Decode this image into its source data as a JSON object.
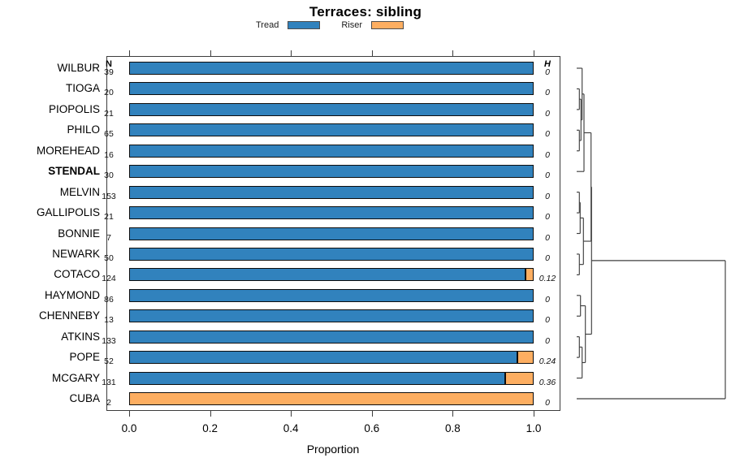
{
  "chart_data": {
    "type": "bar",
    "orientation": "horizontal",
    "stacked": true,
    "title": "Terraces: sibling",
    "xlabel": "Proportion",
    "xlim": [
      0,
      1
    ],
    "x_ticks": [
      "0.0",
      "0.2",
      "0.4",
      "0.6",
      "0.8",
      "1.0"
    ],
    "x_tick_values": [
      0.0,
      0.2,
      0.4,
      0.6,
      0.8,
      1.0
    ],
    "grid": false,
    "legend_position": "top",
    "n_header": "N",
    "h_header": "H",
    "series": [
      {
        "name": "Tread",
        "color": "#3182BD"
      },
      {
        "name": "Riser",
        "color": "#FDAE61"
      }
    ],
    "colors": {
      "tread": "#3182BD",
      "riser": "#FDAE61",
      "bar_border": "#0d0d0d",
      "box_border": "#3c3c3c",
      "dendro_line": "#3f3f3f"
    },
    "rows": [
      {
        "label": "WILBUR",
        "n": "39",
        "tread": 1.0,
        "riser": 0.0,
        "h": "0",
        "bold": false
      },
      {
        "label": "TIOGA",
        "n": "20",
        "tread": 1.0,
        "riser": 0.0,
        "h": "0",
        "bold": false
      },
      {
        "label": "PIOPOLIS",
        "n": "21",
        "tread": 1.0,
        "riser": 0.0,
        "h": "0",
        "bold": false
      },
      {
        "label": "PHILO",
        "n": "65",
        "tread": 1.0,
        "riser": 0.0,
        "h": "0",
        "bold": false
      },
      {
        "label": "MOREHEAD",
        "n": "16",
        "tread": 1.0,
        "riser": 0.0,
        "h": "0",
        "bold": false
      },
      {
        "label": "STENDAL",
        "n": "30",
        "tread": 1.0,
        "riser": 0.0,
        "h": "0",
        "bold": true
      },
      {
        "label": "MELVIN",
        "n": "153",
        "tread": 1.0,
        "riser": 0.0,
        "h": "0",
        "bold": false
      },
      {
        "label": "GALLIPOLIS",
        "n": "21",
        "tread": 1.0,
        "riser": 0.0,
        "h": "0",
        "bold": false
      },
      {
        "label": "BONNIE",
        "n": "7",
        "tread": 1.0,
        "riser": 0.0,
        "h": "0",
        "bold": false
      },
      {
        "label": "NEWARK",
        "n": "50",
        "tread": 1.0,
        "riser": 0.0,
        "h": "0",
        "bold": false
      },
      {
        "label": "COTACO",
        "n": "124",
        "tread": 0.98,
        "riser": 0.02,
        "h": "0.12",
        "bold": false
      },
      {
        "label": "HAYMOND",
        "n": "86",
        "tread": 1.0,
        "riser": 0.0,
        "h": "0",
        "bold": false
      },
      {
        "label": "CHENNEBY",
        "n": "13",
        "tread": 1.0,
        "riser": 0.0,
        "h": "0",
        "bold": false
      },
      {
        "label": "ATKINS",
        "n": "133",
        "tread": 1.0,
        "riser": 0.0,
        "h": "0",
        "bold": false
      },
      {
        "label": "POPE",
        "n": "52",
        "tread": 0.96,
        "riser": 0.04,
        "h": "0.24",
        "bold": false
      },
      {
        "label": "MCGARY",
        "n": "131",
        "tread": 0.93,
        "riser": 0.07,
        "h": "0.36",
        "bold": false
      },
      {
        "label": "CUBA",
        "n": "2",
        "tread": 0.0,
        "riser": 1.0,
        "h": "0",
        "bold": false
      }
    ],
    "dendrogram": {
      "note": "constrained clustering of rows; height = px offset from leaf baseline",
      "merges": [
        {
          "id": "a1",
          "a": "TIOGA",
          "b": "PIOPOLIS",
          "h": 3.3
        },
        {
          "id": "a2",
          "a": "PHILO",
          "b": "MOREHEAD",
          "h": 3.3
        },
        {
          "id": "a3",
          "a": "a1",
          "b": "a2",
          "h": 5.3
        },
        {
          "id": "a4",
          "a": "WILBUR",
          "b": "a3",
          "h": 6.7
        },
        {
          "id": "a5",
          "a": "a4",
          "b": "STENDAL",
          "h": 9.0
        },
        {
          "id": "b1",
          "a": "MELVIN",
          "b": "GALLIPOLIS",
          "h": 3.3
        },
        {
          "id": "b2",
          "a": "b1",
          "b": "BONNIE",
          "h": 4.3
        },
        {
          "id": "c1",
          "a": "NEWARK",
          "b": "COTACO",
          "h": 3.3
        },
        {
          "id": "bc",
          "a": "b2",
          "b": "c1",
          "h": 8.3
        },
        {
          "id": "d1",
          "a": "HAYMOND",
          "b": "CHENNEBY",
          "h": 4.7
        },
        {
          "id": "e0",
          "a": "ATKINS",
          "b": "POPE",
          "h": 3.3
        },
        {
          "id": "e1",
          "a": "e0",
          "b": "MCGARY",
          "h": 6.7
        },
        {
          "id": "f",
          "a": "d1",
          "b": "e1",
          "h": 10.7
        },
        {
          "id": "m1",
          "a": "a5",
          "b": "bc",
          "h": 17.7
        },
        {
          "id": "m2",
          "a": "m1",
          "b": "f",
          "h": 18.3
        },
        {
          "id": "root",
          "a": "m2",
          "b": "CUBA",
          "h": 183.0
        }
      ]
    }
  }
}
